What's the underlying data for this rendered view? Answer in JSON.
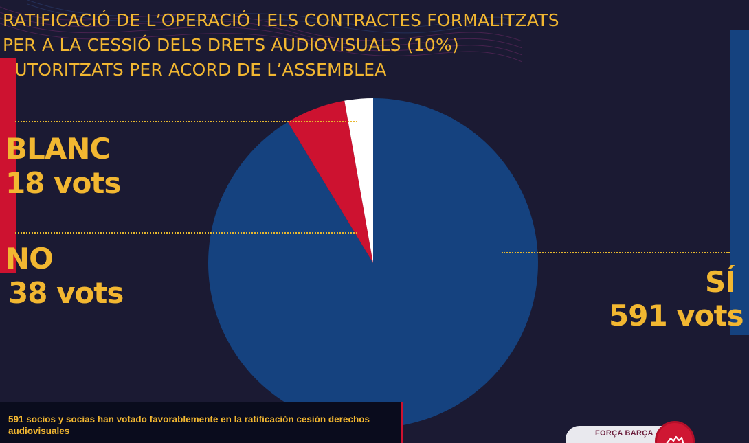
{
  "title_lines": [
    "RATIFICACIÓ DE L’OPERACIÓ I ELS CONTRACTES FORMALITZATS",
    "PER A LA CESSIÓ DELS DRETS AUDIOVISUALS (10%)",
    "AUTORITZATS PER ACORD DE L’ASSEMBLEA"
  ],
  "labels": {
    "blanc_name": "BLANC",
    "blanc_votes": "18 vots",
    "no_name": "NO",
    "no_votes": "38 vots",
    "si_name": "SÍ",
    "si_votes": "591 vots"
  },
  "caption": "591 socios y socias han votado favorablemente en la ratificación cesión derechos audiovisuales",
  "brand": {
    "text": "FORÇA BARÇA",
    "icon": "hand-heart-icon"
  },
  "colors": {
    "si": "#15427f",
    "no": "#cd1230",
    "blanc": "#ffffff",
    "accent": "#f2b731",
    "background": "#1b1a33"
  },
  "chart_data": {
    "type": "pie",
    "categories": [
      "SÍ",
      "NO",
      "BLANC"
    ],
    "values": [
      591,
      38,
      18
    ],
    "title": "RATIFICACIÓ DE L’OPERACIÓ I ELS CONTRACTES FORMALITZATS PER A LA CESSIÓ DELS DRETS AUDIOVISUALS (10%) AUTORITZATS PER ACORD DE L’ASSEMBLEA",
    "start": "top",
    "direction": "clockwise",
    "legend": "none"
  }
}
